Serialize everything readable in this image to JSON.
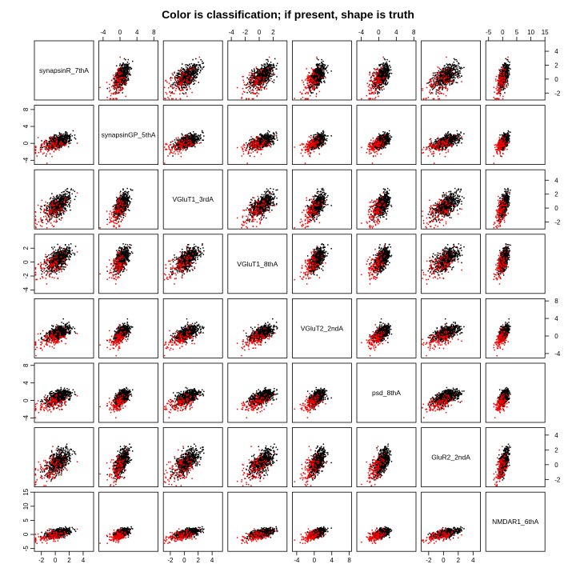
{
  "chart_title": "Color is classification; if present, shape is truth",
  "chart_data": {
    "type": "scatter",
    "layout": "scatterplot-matrix",
    "title": "Color is classification; if present, shape is truth",
    "variables": [
      "synapsinR_7thA",
      "synapsinGP_5thA",
      "VGluT1_3rdA",
      "VGluT1_8thA",
      "VGluT2_2ndA",
      "psd_8thA",
      "GluR2_2ndA",
      "NMDAR1_6thA"
    ],
    "ranges": [
      [
        -3,
        5.5
      ],
      [
        -5,
        9
      ],
      [
        -3,
        5.5
      ],
      [
        -4.5,
        4
      ],
      [
        -5,
        8.5
      ],
      [
        -5,
        8.5
      ],
      [
        -3,
        5
      ],
      [
        -6,
        15
      ]
    ],
    "ticks": [
      [
        -2,
        0,
        2,
        4
      ],
      [
        -4,
        0,
        4,
        8
      ],
      [
        -2,
        0,
        2,
        4
      ],
      [
        -4,
        -2,
        0,
        2
      ],
      [
        -4,
        0,
        4,
        8
      ],
      [
        -4,
        0,
        4,
        8
      ],
      [
        -2,
        0,
        2,
        4
      ],
      [
        -5,
        0,
        5,
        10,
        15
      ]
    ],
    "colors": {
      "class_1": "#000000",
      "class_2": "#ff0000"
    },
    "legend": "none",
    "grid": false
  }
}
